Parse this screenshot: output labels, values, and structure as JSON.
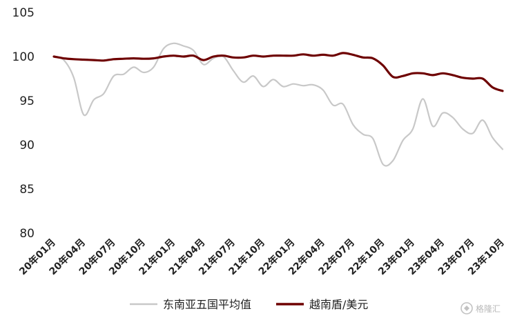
{
  "chart_data": {
    "type": "line",
    "title": "",
    "xlabel": "",
    "ylabel": "",
    "ylim": [
      80,
      105
    ],
    "yticks": [
      80,
      85,
      90,
      95,
      100,
      105
    ],
    "grid": false,
    "legend_position": "bottom",
    "x_tick_labels": [
      "20年01月",
      "20年04月",
      "20年07月",
      "20年10月",
      "21年01月",
      "21年04月",
      "21年07月",
      "21年10月",
      "22年01月",
      "22年04月",
      "22年07月",
      "22年10月",
      "23年01月",
      "23年04月",
      "23年07月",
      "23年10月"
    ],
    "series": [
      {
        "name": "东南亚五国平均值",
        "color": "#c8c8c8",
        "values": [
          100,
          99.6,
          97.6,
          93.4,
          95.1,
          95.8,
          97.8,
          98.0,
          98.8,
          98.2,
          98.8,
          100.9,
          101.5,
          101.2,
          100.7,
          99.1,
          99.8,
          100.0,
          98.4,
          97.1,
          97.8,
          96.6,
          97.4,
          96.6,
          96.9,
          96.7,
          96.8,
          96.2,
          94.5,
          94.6,
          92.3,
          91.2,
          90.7,
          87.8,
          88.2,
          90.5,
          91.8,
          95.2,
          92.1,
          93.6,
          93.1,
          91.8,
          91.3,
          92.8,
          90.8,
          89.5
        ]
      },
      {
        "name": "越南盾/美元",
        "color": "#6e0000",
        "values": [
          100,
          99.8,
          99.7,
          99.65,
          99.6,
          99.55,
          99.7,
          99.75,
          99.8,
          99.75,
          99.8,
          100.0,
          100.1,
          100.0,
          100.1,
          99.6,
          100.0,
          100.1,
          99.9,
          99.9,
          100.1,
          100.0,
          100.1,
          100.1,
          100.1,
          100.25,
          100.1,
          100.2,
          100.1,
          100.4,
          100.2,
          99.9,
          99.8,
          99.0,
          97.7,
          97.8,
          98.1,
          98.1,
          97.9,
          98.1,
          97.9,
          97.6,
          97.5,
          97.5,
          96.5,
          96.1
        ]
      }
    ]
  },
  "watermark": {
    "text": "格隆汇",
    "icon": "gelonghui-logo-icon"
  }
}
